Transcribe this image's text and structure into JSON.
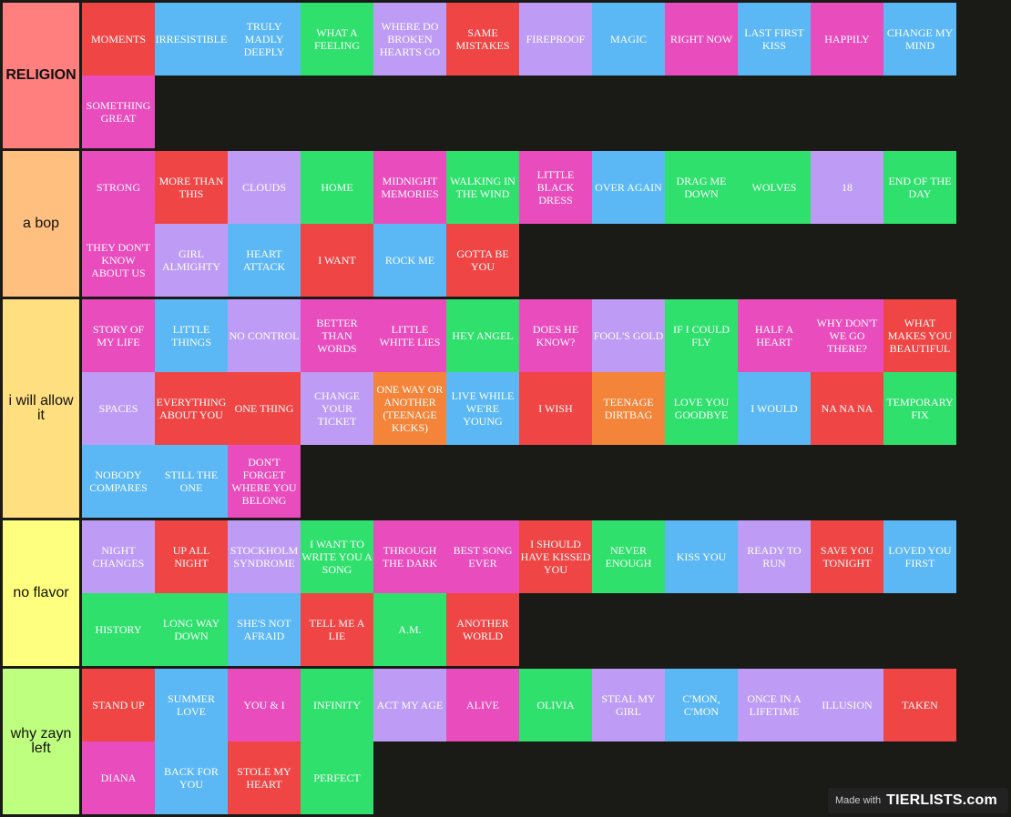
{
  "colors": {
    "red": "#f04545",
    "blue": "#5bb8f5",
    "green": "#2fe06d",
    "purple": "#be9cf5",
    "pink": "#e94cbc",
    "orange": "#f48439",
    "background": "#1a1a17"
  },
  "tiers": [
    {
      "label": "RELIGION",
      "bold": true,
      "color": "#ff7f7f",
      "items": [
        {
          "text": "MOMENTS",
          "color": "red"
        },
        {
          "text": "IRRESISTIBLE",
          "color": "blue"
        },
        {
          "text": "TRULY MADLY DEEPLY",
          "color": "blue"
        },
        {
          "text": "WHAT A FEELING",
          "color": "green"
        },
        {
          "text": "WHERE DO BROKEN HEARTS GO",
          "color": "purple"
        },
        {
          "text": "SAME MISTAKES",
          "color": "red"
        },
        {
          "text": "FIREPROOF",
          "color": "purple"
        },
        {
          "text": "MAGIC",
          "color": "blue"
        },
        {
          "text": "RIGHT NOW",
          "color": "pink"
        },
        {
          "text": "LAST FIRST KISS",
          "color": "blue"
        },
        {
          "text": "HAPPILY",
          "color": "pink"
        },
        {
          "text": "CHANGE MY MIND",
          "color": "blue"
        },
        {
          "text": "SOMETHING GREAT",
          "color": "pink"
        }
      ]
    },
    {
      "label": "a bop",
      "bold": false,
      "color": "#ffbf7f",
      "items": [
        {
          "text": "STRONG",
          "color": "pink"
        },
        {
          "text": "MORE THAN THIS",
          "color": "red"
        },
        {
          "text": "CLOUDS",
          "color": "purple"
        },
        {
          "text": "HOME",
          "color": "green"
        },
        {
          "text": "MIDNIGHT MEMORIES",
          "color": "pink"
        },
        {
          "text": "WALKING IN THE WIND",
          "color": "green"
        },
        {
          "text": "LITTLE BLACK DRESS",
          "color": "pink"
        },
        {
          "text": "OVER AGAIN",
          "color": "blue"
        },
        {
          "text": "DRAG ME DOWN",
          "color": "green"
        },
        {
          "text": "WOLVES",
          "color": "green"
        },
        {
          "text": "18",
          "color": "purple"
        },
        {
          "text": "END OF THE DAY",
          "color": "green"
        },
        {
          "text": "THEY DON'T KNOW ABOUT US",
          "color": "pink"
        },
        {
          "text": "GIRL ALMIGHTY",
          "color": "purple"
        },
        {
          "text": "HEART ATTACK",
          "color": "blue"
        },
        {
          "text": "I WANT",
          "color": "red"
        },
        {
          "text": "ROCK ME",
          "color": "blue"
        },
        {
          "text": "GOTTA BE YOU",
          "color": "red"
        }
      ]
    },
    {
      "label": "i will allow it",
      "bold": false,
      "color": "#ffdf7f",
      "items": [
        {
          "text": "STORY OF MY LIFE",
          "color": "pink"
        },
        {
          "text": "LITTLE THINGS",
          "color": "blue"
        },
        {
          "text": "NO CONTROL",
          "color": "purple"
        },
        {
          "text": "BETTER THAN WORDS",
          "color": "pink"
        },
        {
          "text": "LITTLE WHITE LIES",
          "color": "pink"
        },
        {
          "text": "HEY ANGEL",
          "color": "green"
        },
        {
          "text": "DOES HE KNOW?",
          "color": "pink"
        },
        {
          "text": "FOOL'S GOLD",
          "color": "purple"
        },
        {
          "text": "IF I COULD FLY",
          "color": "green"
        },
        {
          "text": "HALF A HEART",
          "color": "pink"
        },
        {
          "text": "WHY DON'T WE GO THERE?",
          "color": "pink"
        },
        {
          "text": "WHAT MAKES YOU BEAUTIFUL",
          "color": "red"
        },
        {
          "text": "SPACES",
          "color": "purple"
        },
        {
          "text": "EVERYTHING ABOUT YOU",
          "color": "red"
        },
        {
          "text": "ONE THING",
          "color": "red"
        },
        {
          "text": "CHANGE YOUR TICKET",
          "color": "purple"
        },
        {
          "text": "ONE WAY OR ANOTHER (TEENAGE KICKS)",
          "color": "orange"
        },
        {
          "text": "LIVE WHILE WE'RE YOUNG",
          "color": "blue"
        },
        {
          "text": "I WISH",
          "color": "red"
        },
        {
          "text": "TEENAGE DIRTBAG",
          "color": "orange"
        },
        {
          "text": "LOVE YOU GOODBYE",
          "color": "green"
        },
        {
          "text": "I WOULD",
          "color": "blue"
        },
        {
          "text": "NA NA NA",
          "color": "red"
        },
        {
          "text": "TEMPORARY FIX",
          "color": "green"
        },
        {
          "text": "NOBODY COMPARES",
          "color": "blue"
        },
        {
          "text": "STILL THE ONE",
          "color": "blue"
        },
        {
          "text": "DON'T FORGET WHERE YOU BELONG",
          "color": "pink"
        }
      ]
    },
    {
      "label": "no flavor",
      "bold": false,
      "color": "#ffff7f",
      "items": [
        {
          "text": "NIGHT CHANGES",
          "color": "purple"
        },
        {
          "text": "UP ALL NIGHT",
          "color": "red"
        },
        {
          "text": "STOCKHOLM SYNDROME",
          "color": "purple"
        },
        {
          "text": "I WANT TO WRITE YOU A SONG",
          "color": "green"
        },
        {
          "text": "THROUGH THE DARK",
          "color": "pink"
        },
        {
          "text": "BEST SONG EVER",
          "color": "pink"
        },
        {
          "text": "I SHOULD HAVE KISSED YOU",
          "color": "red"
        },
        {
          "text": "NEVER ENOUGH",
          "color": "green"
        },
        {
          "text": "KISS YOU",
          "color": "blue"
        },
        {
          "text": "READY TO RUN",
          "color": "purple"
        },
        {
          "text": "SAVE YOU TONIGHT",
          "color": "red"
        },
        {
          "text": "LOVED YOU FIRST",
          "color": "blue"
        },
        {
          "text": "HISTORY",
          "color": "green"
        },
        {
          "text": "LONG WAY DOWN",
          "color": "green"
        },
        {
          "text": "SHE'S NOT AFRAID",
          "color": "blue"
        },
        {
          "text": "TELL ME A LIE",
          "color": "red"
        },
        {
          "text": "A.M.",
          "color": "green"
        },
        {
          "text": "ANOTHER WORLD",
          "color": "red"
        }
      ]
    },
    {
      "label": "why zayn left",
      "bold": false,
      "color": "#bfff7f",
      "items": [
        {
          "text": "STAND UP",
          "color": "red"
        },
        {
          "text": "SUMMER LOVE",
          "color": "blue"
        },
        {
          "text": "YOU & I",
          "color": "pink"
        },
        {
          "text": "INFINITY",
          "color": "green"
        },
        {
          "text": "ACT MY AGE",
          "color": "purple"
        },
        {
          "text": "ALIVE",
          "color": "pink"
        },
        {
          "text": "OLIVIA",
          "color": "green"
        },
        {
          "text": "STEAL MY GIRL",
          "color": "purple"
        },
        {
          "text": "C'MON, C'MON",
          "color": "blue"
        },
        {
          "text": "ONCE IN A LIFETIME",
          "color": "purple"
        },
        {
          "text": "ILLUSION",
          "color": "purple"
        },
        {
          "text": "TAKEN",
          "color": "red"
        },
        {
          "text": "DIANA",
          "color": "pink"
        },
        {
          "text": "BACK FOR YOU",
          "color": "blue"
        },
        {
          "text": "STOLE MY HEART",
          "color": "red"
        },
        {
          "text": "PERFECT",
          "color": "green"
        }
      ]
    }
  ],
  "badge": {
    "made_with": "Made with",
    "logo": "TIERLISTS.com"
  }
}
